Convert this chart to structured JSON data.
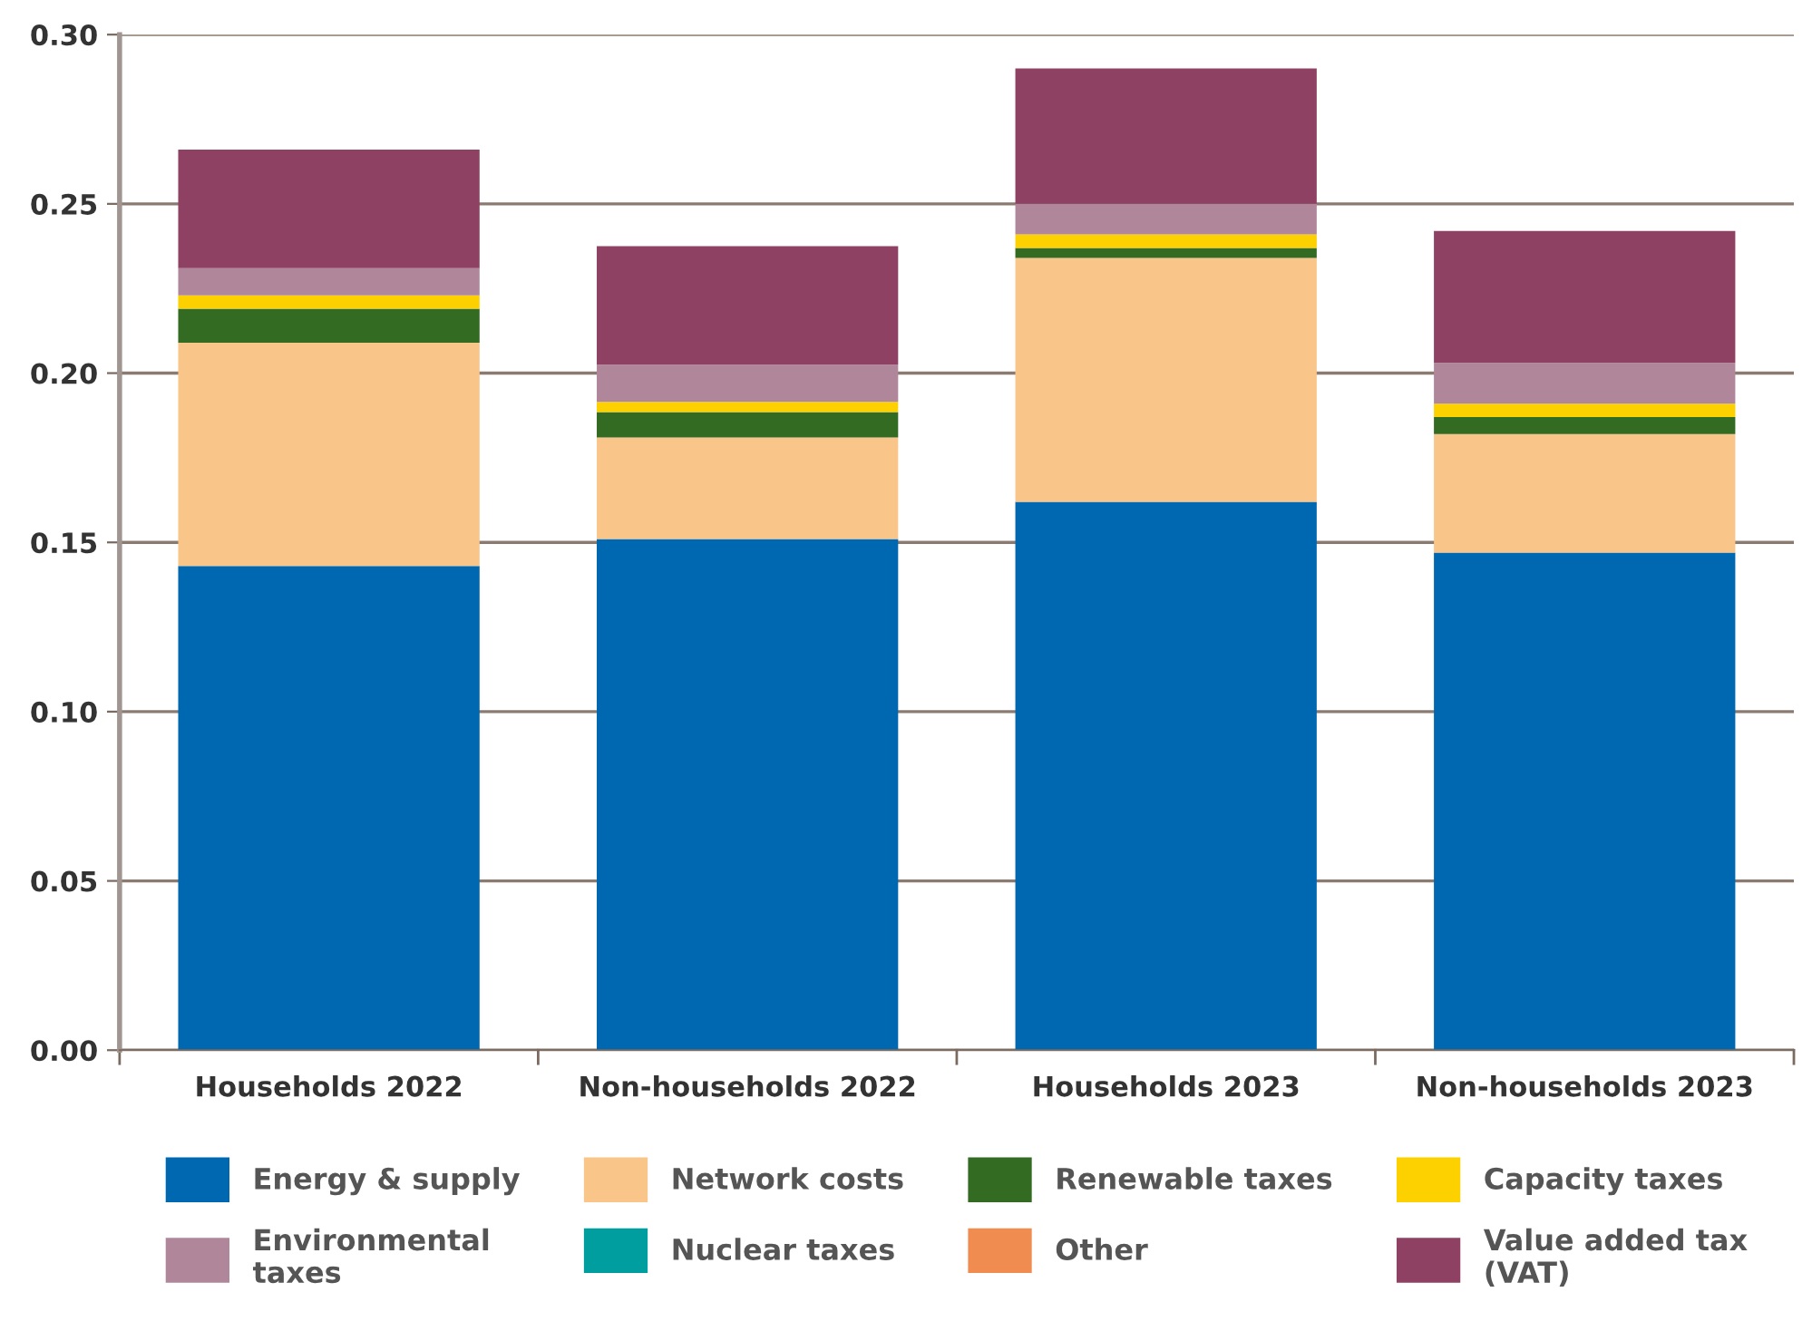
{
  "chart_data": {
    "type": "bar",
    "stacked": true,
    "categories": [
      "Households 2022",
      "Non-households 2022",
      "Households 2023",
      "Non-households 2023"
    ],
    "series": [
      {
        "name": "Energy & supply",
        "color": "#0067b1",
        "values": [
          0.143,
          0.151,
          0.162,
          0.147
        ]
      },
      {
        "name": "Network costs",
        "color": "#f9c589",
        "values": [
          0.066,
          0.03,
          0.072,
          0.035
        ]
      },
      {
        "name": "Renewable taxes",
        "color": "#346b22",
        "values": [
          0.01,
          0.0075,
          0.003,
          0.005
        ]
      },
      {
        "name": "Capacity taxes",
        "color": "#fdd000",
        "values": [
          0.004,
          0.003,
          0.004,
          0.004
        ]
      },
      {
        "name": "Environmental\ntaxes",
        "color": "#b0869b",
        "values": [
          0.008,
          0.011,
          0.009,
          0.012
        ]
      },
      {
        "name": "Nuclear taxes",
        "color": "#009e9e",
        "values": [
          0,
          0,
          0,
          0
        ]
      },
      {
        "name": "Other",
        "color": "#f08c50",
        "values": [
          0,
          0,
          0,
          0
        ]
      },
      {
        "name": "Value added tax\n(VAT)",
        "color": "#8e4163",
        "values": [
          0.035,
          0.035,
          0.04,
          0.039
        ]
      }
    ],
    "ylim": [
      0,
      0.3
    ],
    "yticks": [
      {
        "value": 0,
        "label": "0.00"
      },
      {
        "value": 0.05,
        "label": "0.05"
      },
      {
        "value": 0.1,
        "label": "0.10"
      },
      {
        "value": 0.15,
        "label": "0.15"
      },
      {
        "value": 0.2,
        "label": "0.20"
      },
      {
        "value": 0.25,
        "label": "0.25"
      },
      {
        "value": 0.3,
        "label": "0.30"
      }
    ],
    "grid": "y",
    "legend": "bottom"
  }
}
